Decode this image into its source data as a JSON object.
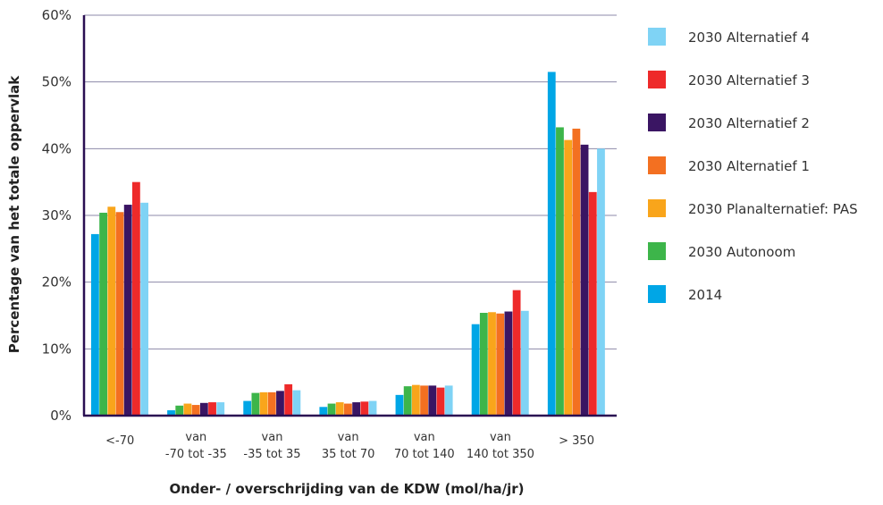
{
  "chart_data": {
    "type": "bar",
    "xlabel": "Onder- / overschrijding van de KDW (mol/ha/jr)",
    "ylabel": "Percentage van het totale oppervlak",
    "ylim": [
      0,
      60
    ],
    "yticks": [
      0,
      10,
      20,
      30,
      40,
      50,
      60
    ],
    "ytick_labels": [
      "0%",
      "10%",
      "20%",
      "30%",
      "40%",
      "50%",
      "60%"
    ],
    "grid": true,
    "legend_position": "right",
    "categories": [
      [
        "<-70"
      ],
      [
        "van",
        "-70 tot -35"
      ],
      [
        "van",
        "-35 tot 35"
      ],
      [
        "van",
        "35 tot 70"
      ],
      [
        "van",
        "70 tot 140"
      ],
      [
        "van",
        "140 tot 350"
      ],
      [
        "> 350"
      ]
    ],
    "series": [
      {
        "name": "2014",
        "color": "#00a6e6",
        "values": [
          27.2,
          0.8,
          2.2,
          1.3,
          3.1,
          13.7,
          51.5
        ]
      },
      {
        "name": "2030 Autonoom",
        "color": "#3db54a",
        "values": [
          30.4,
          1.5,
          3.4,
          1.8,
          4.4,
          15.4,
          43.2
        ]
      },
      {
        "name": "2030 Planalternatief: PAS",
        "color": "#f9a51b",
        "values": [
          31.3,
          1.8,
          3.5,
          2.0,
          4.6,
          15.5,
          41.3
        ]
      },
      {
        "name": "2030 Alternatief 1",
        "color": "#f37021",
        "values": [
          30.5,
          1.6,
          3.5,
          1.8,
          4.5,
          15.3,
          43.0
        ]
      },
      {
        "name": "2030 Alternatief 2",
        "color": "#3a1563",
        "values": [
          31.6,
          1.9,
          3.7,
          2.0,
          4.5,
          15.6,
          40.6
        ]
      },
      {
        "name": "2030 Alternatief 3",
        "color": "#ee2a2a",
        "values": [
          35.0,
          2.0,
          4.7,
          2.1,
          4.2,
          18.8,
          33.5
        ]
      },
      {
        "name": "2030 Alternatief 4",
        "color": "#7fd3f5",
        "values": [
          31.9,
          2.0,
          3.8,
          2.2,
          4.5,
          15.7,
          40.0
        ]
      }
    ],
    "legend_order": [
      6,
      5,
      4,
      3,
      2,
      1,
      0
    ]
  }
}
